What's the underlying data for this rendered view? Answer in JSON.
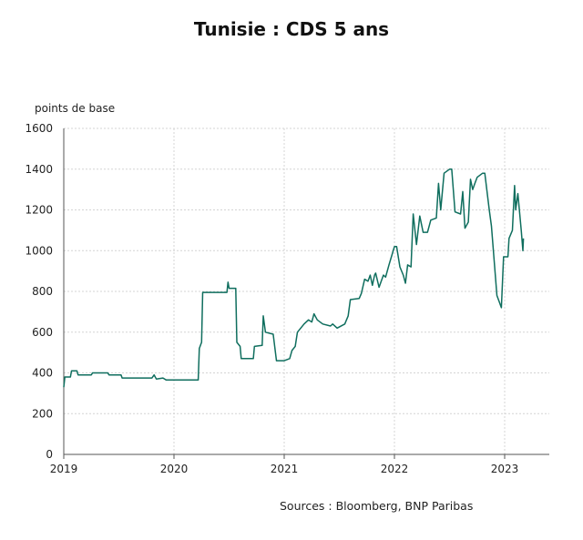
{
  "chart_data": {
    "type": "line",
    "title": "Tunisie : CDS 5 ans",
    "ylabel": "points de base",
    "xlabel": "",
    "source": "Sources : Bloomberg, BNP Paribas",
    "ylim": [
      0,
      1600
    ],
    "xlim": [
      2019,
      2023.4
    ],
    "yticks": [
      0,
      200,
      400,
      600,
      800,
      1000,
      1200,
      1400,
      1600
    ],
    "xticks": [
      2019,
      2020,
      2021,
      2022,
      2023
    ],
    "grid": true,
    "color": "#0f6e5e",
    "series": [
      {
        "name": "CDS 5 ans",
        "x": [
          2019.0,
          2019.01,
          2019.06,
          2019.07,
          2019.12,
          2019.13,
          2019.25,
          2019.26,
          2019.4,
          2019.41,
          2019.52,
          2019.53,
          2019.8,
          2019.82,
          2019.84,
          2019.9,
          2019.93,
          2020.22,
          2020.23,
          2020.25,
          2020.26,
          2020.48,
          2020.49,
          2020.5,
          2020.56,
          2020.57,
          2020.6,
          2020.61,
          2020.72,
          2020.73,
          2020.8,
          2020.81,
          2020.83,
          2020.9,
          2020.93,
          2021.0,
          2021.05,
          2021.07,
          2021.1,
          2021.12,
          2021.18,
          2021.22,
          2021.25,
          2021.27,
          2021.3,
          2021.35,
          2021.42,
          2021.44,
          2021.48,
          2021.55,
          2021.58,
          2021.6,
          2021.68,
          2021.7,
          2021.73,
          2021.76,
          2021.78,
          2021.8,
          2021.82,
          2021.83,
          2021.86,
          2021.9,
          2021.92,
          2021.95,
          2022.0,
          2022.02,
          2022.05,
          2022.08,
          2022.1,
          2022.12,
          2022.15,
          2022.17,
          2022.2,
          2022.23,
          2022.26,
          2022.3,
          2022.33,
          2022.38,
          2022.4,
          2022.42,
          2022.45,
          2022.5,
          2022.52,
          2022.55,
          2022.6,
          2022.62,
          2022.64,
          2022.67,
          2022.69,
          2022.71,
          2022.73,
          2022.75,
          2022.8,
          2022.82,
          2022.86,
          2022.88,
          2022.93,
          2022.95,
          2022.97,
          2022.99,
          2023.03,
          2023.04,
          2023.07,
          2023.09,
          2023.1,
          2023.12,
          2023.15,
          2023.165,
          2023.17
        ],
        "values": [
          330,
          380,
          380,
          410,
          410,
          390,
          390,
          400,
          400,
          390,
          390,
          375,
          375,
          390,
          370,
          375,
          365,
          365,
          520,
          550,
          795,
          795,
          845,
          815,
          815,
          550,
          530,
          470,
          470,
          530,
          535,
          680,
          600,
          590,
          460,
          460,
          470,
          510,
          530,
          600,
          640,
          660,
          650,
          690,
          660,
          640,
          630,
          640,
          620,
          640,
          680,
          760,
          765,
          790,
          860,
          850,
          880,
          830,
          880,
          890,
          820,
          880,
          870,
          930,
          1020,
          1020,
          920,
          880,
          840,
          930,
          920,
          1180,
          1030,
          1170,
          1090,
          1090,
          1150,
          1160,
          1330,
          1200,
          1380,
          1400,
          1400,
          1190,
          1180,
          1290,
          1110,
          1140,
          1350,
          1300,
          1330,
          1360,
          1380,
          1380,
          1200,
          1120,
          780,
          750,
          720,
          970,
          970,
          1060,
          1100,
          1320,
          1200,
          1280,
          1100,
          1000,
          1060
        ]
      }
    ]
  }
}
